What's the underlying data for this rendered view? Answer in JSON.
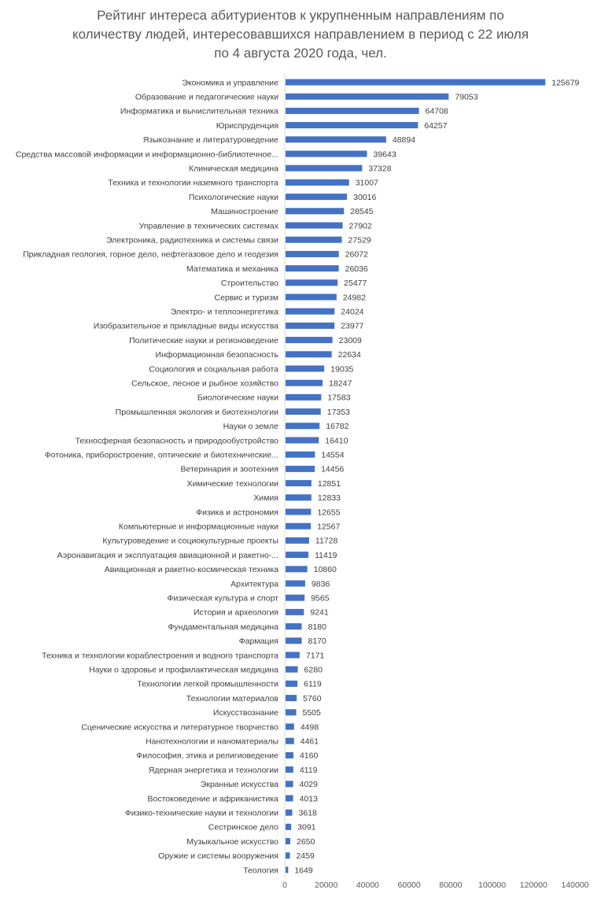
{
  "chart_data": {
    "type": "bar",
    "orientation": "horizontal",
    "title_lines": [
      "Рейтинг интереса абитуриентов к укрупненным направлениям по",
      "количеству людей, интересовавшихся направлением в период с 22 июля",
      "по 4 августа 2020 года, чел."
    ],
    "categories": [
      "Экономика и управление",
      "Образование и педагогические науки",
      "Информатика и вычислительная техника",
      "Юриспруденция",
      "Языкознание и литературоведение",
      "Средства массовой информации и информационно-библиотечное...",
      "Клиническая медицина",
      "Техника и технологии наземного транспорта",
      "Психологические науки",
      "Машиностроение",
      "Управление в технических системах",
      "Электроника, радиотехника и системы связи",
      "Прикладная геология, горное дело, нефтегазовое дело и геодезия",
      "Математика и механика",
      "Строительство",
      "Сервис и туризм",
      "Электро- и теплоэнергетика",
      "Изобразительное и прикладные виды искусства",
      "Политические науки и регионоведение",
      "Информационная безопасность",
      "Социология и социальная работа",
      "Сельское, лесное и рыбное хозяйство",
      "Биологические науки",
      "Промышленная экология и биотехнологии",
      "Науки о земле",
      "Техносферная безопасность и природообустройство",
      "Фотоника, приборостроение, оптические и биотехнические...",
      "Ветеринария и зоотехния",
      "Химические технологии",
      "Химия",
      "Физика и астрономия",
      "Компьютерные и информационные науки",
      "Культуроведение и социокультурные проекты",
      "Аэронавигация и эксплуатация авиационной и ракетно-...",
      "Авиационная и ракетно-космическая техника",
      "Архитектура",
      "Физическая культура и спорт",
      "История и археология",
      "Фундаментальная медицина",
      "Фармация",
      "Техника и технологии кораблестроения и водного транспорта",
      "Науки о здоровье и профилактическая медицина",
      "Технологии легкой промышленности",
      "Технологии материалов",
      "Искусствознание",
      "Сценические искусства и литературное творчество",
      "Нанотехнологии и наноматериалы",
      "Философия, этика и религиоведение",
      "Ядерная энергетика и технологии",
      "Экранные искусства",
      "Востоковедение и африканистика",
      "Физико-технические науки и технологии",
      "Сестринское дело",
      "Музыкальное искусство",
      "Оружие и системы вооружения",
      "Теология"
    ],
    "values": [
      125679,
      79053,
      64708,
      64257,
      48894,
      39643,
      37328,
      31007,
      30016,
      28545,
      27902,
      27529,
      26072,
      26036,
      25477,
      24982,
      24024,
      23977,
      23009,
      22634,
      19035,
      18247,
      17583,
      17353,
      16782,
      16410,
      14554,
      14456,
      12851,
      12833,
      12655,
      12567,
      11728,
      11419,
      10860,
      9836,
      9565,
      9241,
      8180,
      8170,
      7171,
      6280,
      6119,
      5760,
      5505,
      4498,
      4461,
      4160,
      4119,
      4029,
      4013,
      3618,
      3091,
      2650,
      2459,
      1649
    ],
    "xlim": [
      0,
      140000
    ],
    "x_ticks": [
      0,
      20000,
      40000,
      60000,
      80000,
      100000,
      120000,
      140000
    ],
    "x_tick_labels": [
      "0",
      "20000",
      "40000",
      "60000",
      "80000",
      "100000",
      "120000",
      "140000"
    ],
    "grid": false,
    "legend": "none",
    "bar_color": "#4472C4"
  }
}
